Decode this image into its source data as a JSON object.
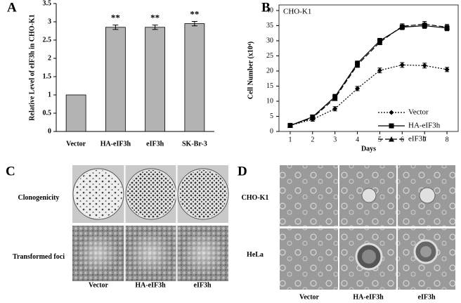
{
  "chart_data": [
    {
      "type": "bar",
      "panel": "A",
      "y_label": "Relative Level of eIF3h in CHO-K1",
      "categories": [
        "Vector",
        "HA-eIF3h",
        "eIF3h",
        "SK-Br-3"
      ],
      "values": [
        1,
        2.85,
        2.85,
        2.95
      ],
      "errors": [
        0,
        0.06,
        0.06,
        0.06
      ],
      "annotations": [
        null,
        "**",
        "**",
        "**"
      ],
      "color": "#b3b3b3",
      "ylim": [
        0,
        3.5
      ],
      "yticks": [
        0,
        0.5,
        1,
        1.5,
        2,
        2.5,
        3,
        3.5
      ]
    },
    {
      "type": "line",
      "panel": "B",
      "annotation": "CHO-K1",
      "x_label": "Days",
      "y_label": "Cell Number (x10⁴)",
      "x": [
        1,
        2,
        3,
        4,
        5,
        6,
        7,
        8
      ],
      "xlim": [
        0.5,
        8.5
      ],
      "xticks": [
        1,
        2,
        3,
        4,
        5,
        6,
        7,
        8
      ],
      "ylim": [
        0,
        40
      ],
      "yticks": [
        0,
        5,
        10,
        15,
        20,
        25,
        30,
        35,
        40
      ],
      "legend": "lower right",
      "series": [
        {
          "name": "Vector",
          "color": "#000000",
          "marker": "diamond",
          "line_style": "dotted",
          "values": [
            2,
            4,
            7.5,
            14.2,
            20.2,
            22,
            21.8,
            20.5
          ],
          "errors": [
            0.3,
            0.6,
            0.7,
            0.7,
            0.8,
            0.8,
            0.8,
            0.7
          ]
        },
        {
          "name": "HA-eIF3h",
          "color": "#000000",
          "marker": "square",
          "line_style": "solid",
          "values": [
            2,
            4.8,
            11.5,
            22.5,
            30,
            34.5,
            35,
            34.2
          ],
          "errors": [
            0.3,
            0.6,
            0.8,
            0.8,
            0.8,
            0.8,
            0.9,
            0.9
          ]
        },
        {
          "name": "eIF3h",
          "color": "#000000",
          "marker": "triangle",
          "line_style": "dashed",
          "values": [
            2,
            4.5,
            11,
            22,
            29.5,
            34.8,
            35.5,
            34.5
          ],
          "errors": [
            0.3,
            0.6,
            0.8,
            0.8,
            0.8,
            0.8,
            0.9,
            0.9
          ]
        }
      ]
    }
  ],
  "photo_panels": [
    {
      "panel": "C",
      "row_labels": [
        "Clonogenicity",
        "Transformed foci"
      ],
      "column_labels": [
        "Vector",
        "HA-eIF3h",
        "eIF3h"
      ]
    },
    {
      "panel": "D",
      "row_labels": [
        "CHO-K1",
        "HeLa"
      ],
      "column_labels": [
        "Vector",
        "HA-eIF3h",
        "eIF3h"
      ]
    }
  ]
}
